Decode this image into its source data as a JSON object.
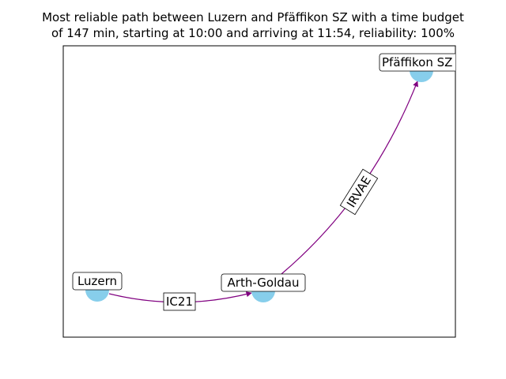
{
  "title": {
    "line1": "Most reliable path between Luzern and Pfäffikon SZ with a time budget",
    "line2": "of 147 min, starting at 10:00 and arriving at 11:54, reliability: 100%"
  },
  "nodes": [
    {
      "id": "luzern",
      "label": "Luzern"
    },
    {
      "id": "arth-goldau",
      "label": "Arth-Goldau"
    },
    {
      "id": "pfaeffikon",
      "label": "Pfäffikon SZ"
    }
  ],
  "edges": [
    {
      "from": "luzern",
      "to": "arth-goldau",
      "label": "IC21"
    },
    {
      "from": "arth-goldau",
      "to": "pfaeffikon",
      "label": "IRVAE"
    }
  ],
  "colors": {
    "node_fill": "#87ceeb",
    "edge": "#800080",
    "frame": "#000000"
  }
}
